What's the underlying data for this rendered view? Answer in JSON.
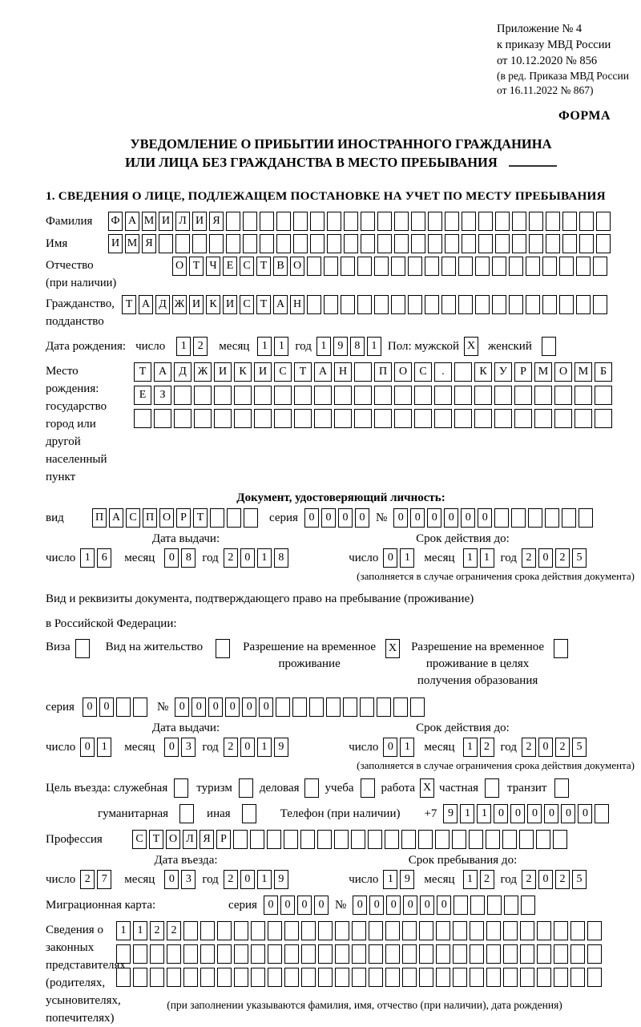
{
  "header": {
    "appendix_lines": [
      "Приложение № 4",
      "к приказу МВД России",
      "от 10.12.2020 № 856"
    ],
    "edition_lines": [
      "(в ред. Приказа МВД России",
      "от 16.11.2022 № 867)"
    ],
    "form_label": "ФОРМА"
  },
  "title": {
    "line1": "УВЕДОМЛЕНИЕ О ПРИБЫТИИ ИНОСТРАННОГО ГРАЖДАНИНА",
    "line2": "ИЛИ ЛИЦА БЕЗ ГРАЖДАНСТВА В МЕСТО ПРЕБЫВАНИЯ"
  },
  "section_heading": "1. СВЕДЕНИЯ О ЛИЦЕ, ПОДЛЕЖАЩЕМ ПОСТАНОВКЕ НА УЧЕТ ПО МЕСТУ ПРЕБЫВАНИЯ",
  "labels": {
    "surname": "Фамилия",
    "given_name": "Имя",
    "patronymic": "Отчество",
    "patronymic_note": "(при наличии)",
    "citizenship1": "Гражданство,",
    "citizenship2": "подданство",
    "birth_date": "Дата рождения:",
    "day": "число",
    "month": "месяц",
    "year": "год",
    "sex_male": "Пол: мужской",
    "sex_female": "женский",
    "birth_place1": "Место рождения:",
    "birth_place2": "государство",
    "birth_place3": "город или другой",
    "birth_place4": "населенный пункт",
    "identity_doc_heading": "Документ, удостоверяющий личность:",
    "doc_type": "вид",
    "series": "серия",
    "number_sign": "№",
    "issue_date": "Дата выдачи:",
    "valid_until": "Срок действия до:",
    "validity_note": "(заполняется в случае ограничения срока действия документа)",
    "residence_doc_line1": "Вид и реквизиты документа, подтверждающего право на пребывание (проживание)",
    "residence_doc_line2": "в Российской Федерации:",
    "visa": "Виза",
    "residence_permit": "Вид на жительство",
    "temp_residence_line1": "Разрешение на временное",
    "temp_residence_line2": "проживание",
    "temp_residence_edu_line1": "Разрешение на временное",
    "temp_residence_edu_line2": "проживание в целях",
    "temp_residence_edu_line3": "получения образования",
    "visit_purpose": "Цель въезда: служебная",
    "tourism": "туризм",
    "business": "деловая",
    "study": "учеба",
    "work": "работа",
    "private": "частная",
    "transit": "транзит",
    "humanitarian": "гуманитарная",
    "other": "иная",
    "phone": "Телефон (при наличии)",
    "phone_prefix": "+7",
    "profession": "Профессия",
    "entry_date": "Дата въезда:",
    "stay_until": "Срок пребывания до:",
    "migration_card": "Миграционная карта:",
    "legal_reps": [
      "Сведения о",
      "законных",
      "представителях",
      "(родителях,",
      "усыновителях,",
      "попечителях)"
    ],
    "legal_reps_note": "(при заполнении указываются фамилия, имя, отчество (при наличии), дата рождения)"
  },
  "fields": {
    "surname": {
      "value": "ФАМИЛИЯ",
      "count": 30
    },
    "given_name": {
      "value": "ИМЯ",
      "count": 30
    },
    "patronymic": {
      "value": "ОТЧЕСТВО",
      "count": 26
    },
    "citizenship": {
      "value": "ТАДЖИКИСТАН",
      "count": 29
    },
    "birth_day": {
      "value": "12",
      "count": 2
    },
    "birth_month": {
      "value": "11",
      "count": 2
    },
    "birth_year": {
      "value": "1981",
      "count": 4
    },
    "sex_male_checkbox": {
      "value": "X",
      "count": 1
    },
    "sex_female_checkbox": {
      "value": "",
      "count": 1
    },
    "birth_place_row1": {
      "value": "ТАДЖИКИСТАН ПОС. КУРМОМБ",
      "count": 24
    },
    "birth_place_row2": {
      "value": "ЕЗ",
      "count": 24
    },
    "birth_place_row3": {
      "value": "",
      "count": 24
    },
    "id_doc_type": {
      "value": "ПАСПОРТ",
      "count": 10
    },
    "id_doc_series": {
      "value": "0000",
      "count": 4
    },
    "id_doc_number": {
      "value": "000000",
      "count": 12
    },
    "id_issue_day": {
      "value": "16",
      "count": 2
    },
    "id_issue_month": {
      "value": "08",
      "count": 2
    },
    "id_issue_year": {
      "value": "2018",
      "count": 4
    },
    "id_valid_day": {
      "value": "01",
      "count": 2
    },
    "id_valid_month": {
      "value": "11",
      "count": 2
    },
    "id_valid_year": {
      "value": "2025",
      "count": 4
    },
    "visa_checkbox": {
      "value": "",
      "count": 1
    },
    "residence_permit_checkbox": {
      "value": "",
      "count": 1
    },
    "temp_residence_checkbox": {
      "value": "X",
      "count": 1
    },
    "temp_residence_edu_checkbox": {
      "value": "",
      "count": 1
    },
    "res_doc_series": {
      "value": "00",
      "count": 4
    },
    "res_doc_number": {
      "value": "000000",
      "count": 15
    },
    "res_issue_day": {
      "value": "01",
      "count": 2
    },
    "res_issue_month": {
      "value": "03",
      "count": 2
    },
    "res_issue_year": {
      "value": "2019",
      "count": 4
    },
    "res_valid_day": {
      "value": "01",
      "count": 2
    },
    "res_valid_month": {
      "value": "12",
      "count": 2
    },
    "res_valid_year": {
      "value": "2025",
      "count": 4
    },
    "purpose_official_checkbox": {
      "value": "",
      "count": 1
    },
    "purpose_tourism_checkbox": {
      "value": "",
      "count": 1
    },
    "purpose_business_checkbox": {
      "value": "",
      "count": 1
    },
    "purpose_study_checkbox": {
      "value": "",
      "count": 1
    },
    "purpose_work_checkbox": {
      "value": "X",
      "count": 1
    },
    "purpose_private_checkbox": {
      "value": "",
      "count": 1
    },
    "purpose_transit_checkbox": {
      "value": "",
      "count": 1
    },
    "purpose_humanitarian_checkbox": {
      "value": "",
      "count": 1
    },
    "purpose_other_checkbox": {
      "value": "",
      "count": 1
    },
    "phone_digits": {
      "value": "911000000",
      "count": 10
    },
    "profession": {
      "value": "СТОЛЯР",
      "count": 26
    },
    "entry_day": {
      "value": "27",
      "count": 2
    },
    "entry_month": {
      "value": "03",
      "count": 2
    },
    "entry_year": {
      "value": "2019",
      "count": 4
    },
    "stay_day": {
      "value": "19",
      "count": 2
    },
    "stay_month": {
      "value": "12",
      "count": 2
    },
    "stay_year": {
      "value": "2025",
      "count": 4
    },
    "mig_card_series": {
      "value": "0000",
      "count": 4
    },
    "mig_card_number": {
      "value": "000000",
      "count": 11
    },
    "legal_reps_row1": {
      "value": "1122",
      "count": 29
    },
    "legal_reps_row2": {
      "value": "",
      "count": 29
    },
    "legal_reps_row3": {
      "value": "",
      "count": 29
    }
  }
}
